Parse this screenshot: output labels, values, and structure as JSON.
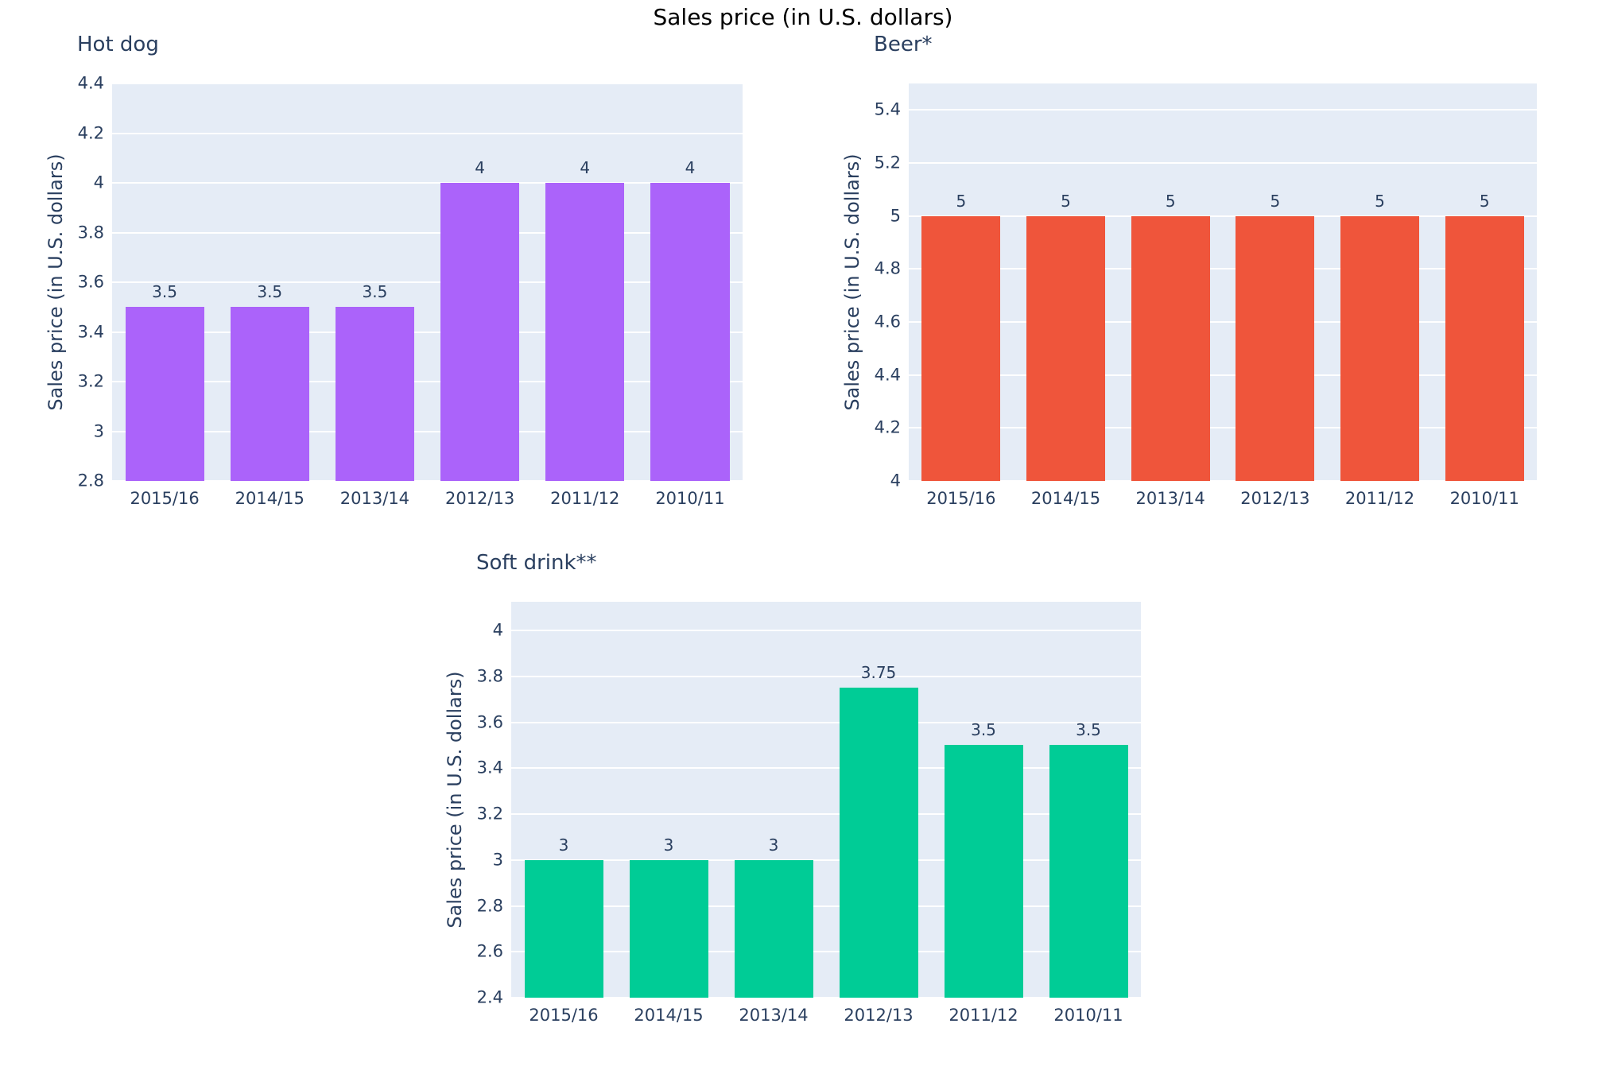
{
  "title": "Sales price (in U.S. dollars)",
  "colors": {
    "title_text": "#000000",
    "axis_text": "#2a3f5f",
    "plot_background": "#e5ecf6",
    "gridline": "#ffffff",
    "page_background": "#ffffff"
  },
  "chart_data": [
    {
      "type": "bar",
      "title": "Hot dog",
      "bar_color": "#ab63fa",
      "categories": [
        "2015/16",
        "2014/15",
        "2013/14",
        "2012/13",
        "2011/12",
        "2010/11"
      ],
      "values": [
        3.5,
        3.5,
        3.5,
        4,
        4,
        4
      ],
      "value_labels": [
        "3.5",
        "3.5",
        "3.5",
        "4",
        "4",
        "4"
      ],
      "xlabel": "",
      "ylabel": "Sales price (in U.S. dollars)",
      "ylim": [
        2.8,
        4.4
      ],
      "yticks": [
        2.8,
        3,
        3.2,
        3.4,
        3.6,
        3.8,
        4,
        4.2,
        4.4
      ],
      "grid": true,
      "legend": "none"
    },
    {
      "type": "bar",
      "title": "Beer*",
      "bar_color": "#ef553b",
      "categories": [
        "2015/16",
        "2014/15",
        "2013/14",
        "2012/13",
        "2011/12",
        "2010/11"
      ],
      "values": [
        5,
        5,
        5,
        5,
        5,
        5
      ],
      "value_labels": [
        "5",
        "5",
        "5",
        "5",
        "5",
        "5"
      ],
      "xlabel": "",
      "ylabel": "Sales price (in U.S. dollars)",
      "ylim": [
        4,
        5.5
      ],
      "yticks": [
        4,
        4.2,
        4.4,
        4.6,
        4.8,
        5,
        5.2,
        5.4
      ],
      "grid": true,
      "legend": "none"
    },
    {
      "type": "bar",
      "title": "Soft drink**",
      "bar_color": "#00cc96",
      "categories": [
        "2015/16",
        "2014/15",
        "2013/14",
        "2012/13",
        "2011/12",
        "2010/11"
      ],
      "values": [
        3,
        3,
        3,
        3.75,
        3.5,
        3.5
      ],
      "value_labels": [
        "3",
        "3",
        "3",
        "3.75",
        "3.5",
        "3.5"
      ],
      "xlabel": "",
      "ylabel": "Sales price (in U.S. dollars)",
      "ylim": [
        2.4,
        4.125
      ],
      "yticks": [
        2.4,
        2.6,
        2.8,
        3,
        3.2,
        3.4,
        3.6,
        3.8,
        4
      ],
      "grid": true,
      "legend": "none"
    }
  ]
}
